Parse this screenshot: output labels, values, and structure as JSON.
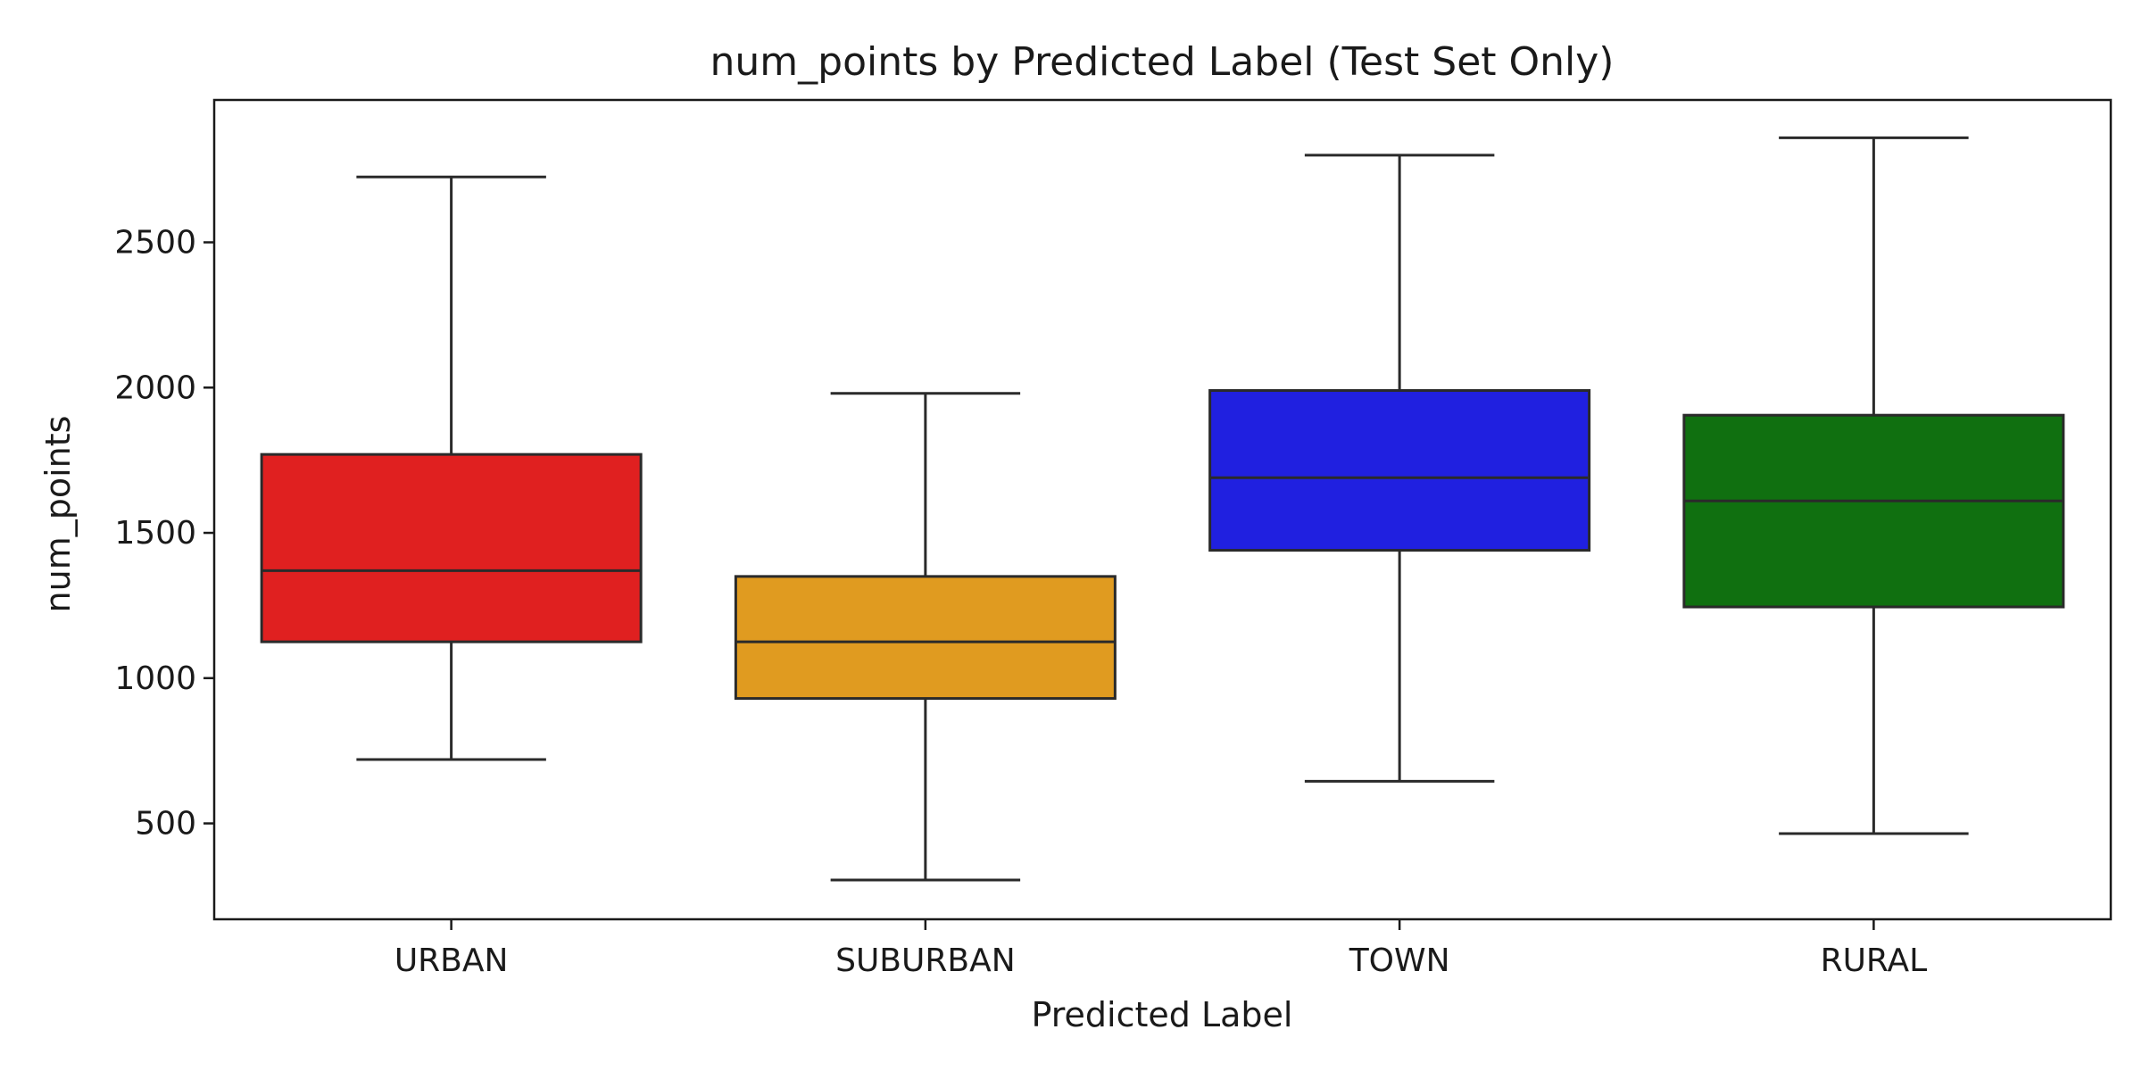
{
  "chart_data": {
    "type": "box",
    "title": "num_points by Predicted Label (Test Set Only)",
    "xlabel": "Predicted Label",
    "ylabel": "num_points",
    "ylim": [
      170,
      2990
    ],
    "yticks": [
      500,
      1000,
      1500,
      2000,
      2500
    ],
    "grid": false,
    "categories": [
      "URBAN",
      "SUBURBAN",
      "TOWN",
      "RURAL"
    ],
    "colors": [
      "#e02020",
      "#e09b20",
      "#2020e0",
      "#107010"
    ],
    "stats": [
      {
        "category": "URBAN",
        "whisker_low": 720,
        "q1": 1125,
        "median": 1370,
        "q3": 1770,
        "whisker_high": 2725
      },
      {
        "category": "SUBURBAN",
        "whisker_low": 305,
        "q1": 930,
        "median": 1125,
        "q3": 1350,
        "whisker_high": 1980
      },
      {
        "category": "TOWN",
        "whisker_low": 645,
        "q1": 1440,
        "median": 1690,
        "q3": 1990,
        "whisker_high": 2800
      },
      {
        "category": "RURAL",
        "whisker_low": 465,
        "q1": 1245,
        "median": 1610,
        "q3": 1905,
        "whisker_high": 2860
      }
    ]
  }
}
